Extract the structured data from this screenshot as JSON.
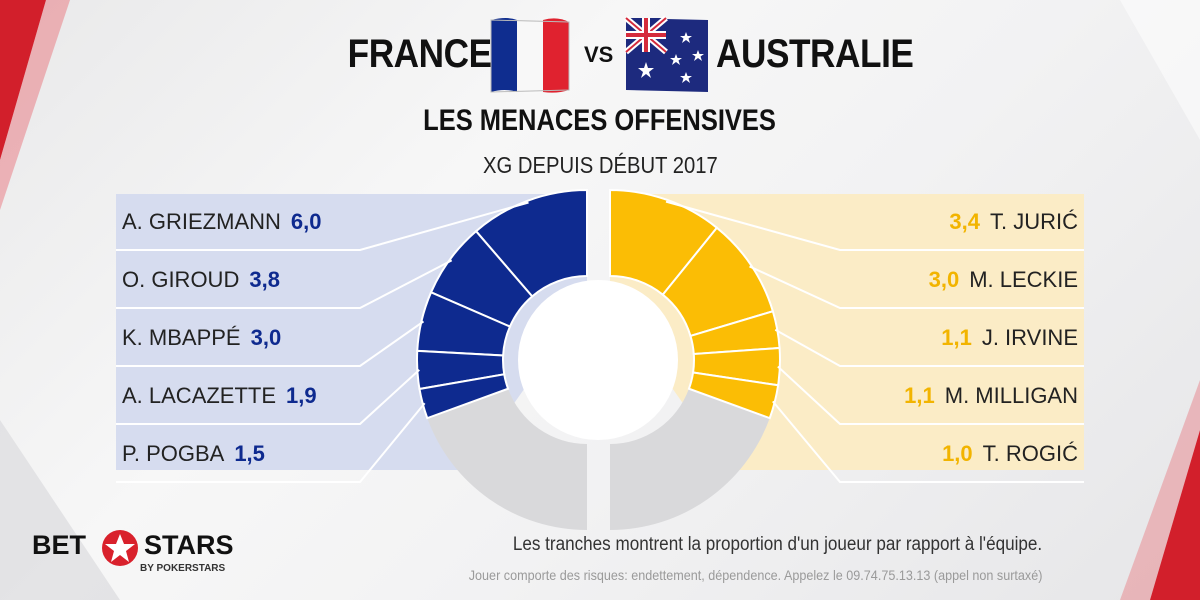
{
  "header": {
    "team_left": "FRANCE",
    "vs": "VS",
    "team_right": "AUSTRALIE",
    "flag_left": "france-flag",
    "flag_right": "australia-flag",
    "title": "LES MENACES OFFENSIVES",
    "subtitle": "XG DEPUIS DÉBUT 2017"
  },
  "chart_data": {
    "type": "pie",
    "title": "LES MENACES OFFENSIVES",
    "subtitle": "XG DEPUIS DÉBUT 2017",
    "teams": [
      {
        "name": "FRANCE",
        "color": "#0e2a8f",
        "panel_color": "#d6dcef",
        "players": [
          {
            "name": "A. GRIEZMANN",
            "value": 6.0,
            "label": "6,0"
          },
          {
            "name": "O. GIROUD",
            "value": 3.8,
            "label": "3,8"
          },
          {
            "name": "K. MBAPPÉ",
            "value": 3.0,
            "label": "3,0"
          },
          {
            "name": "A. LACAZETTE",
            "value": 1.9,
            "label": "1,9"
          },
          {
            "name": "P. POGBA",
            "value": 1.5,
            "label": "1,5"
          }
        ]
      },
      {
        "name": "AUSTRALIE",
        "color": "#fbbd05",
        "panel_color": "#fbecc6",
        "players": [
          {
            "name": "T. JURIĆ",
            "value": 3.4,
            "label": "3,4"
          },
          {
            "name": "M. LECKIE",
            "value": 3.0,
            "label": "3,0"
          },
          {
            "name": "J. IRVINE",
            "value": 1.1,
            "label": "1,1"
          },
          {
            "name": "M. MILLIGAN",
            "value": 1.1,
            "label": "1,1"
          },
          {
            "name": "T. ROGIĆ",
            "value": 1.0,
            "label": "1,0"
          }
        ]
      }
    ]
  },
  "footer": {
    "note": "Les tranches montrent la proportion d'un joueur par rapport à l'équipe.",
    "disclaimer": "Jouer comporte des risques: endettement, dépendence. Appelez le 09.74.75.13.13  (appel non surtaxé)"
  },
  "logo": {
    "word1": "BET",
    "word2": "STARS",
    "tagline": "BY POKERSTARS",
    "icon": "star-icon"
  }
}
